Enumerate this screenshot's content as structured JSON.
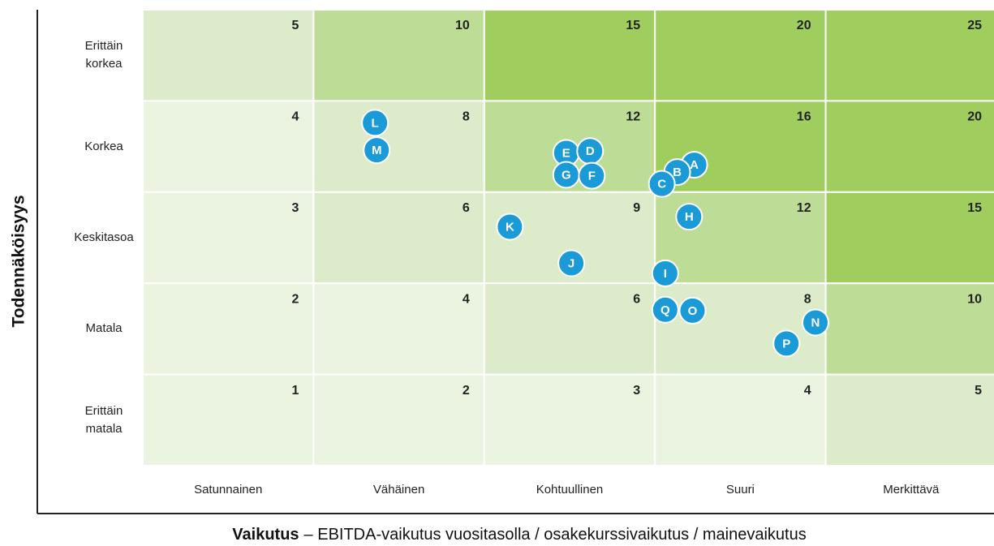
{
  "chart_data": {
    "type": "risk-matrix",
    "ylabel": "Todennäköisyys",
    "xlabel_bold": "Vaikutus",
    "xlabel": "– EBITDA-vaikutus vuositasolla / osakekurssivaikutus / mainevaikutus",
    "x_categories": [
      "Satunnainen",
      "Vähäinen",
      "Kohtuullinen",
      "Suuri",
      "Merkittävä"
    ],
    "y_categories": [
      "Erittäin korkea",
      "Korkea",
      "Keskitasoa",
      "Matala",
      "Erittäin matala"
    ],
    "cells": [
      [
        5,
        10,
        15,
        20,
        25
      ],
      [
        4,
        8,
        12,
        16,
        20
      ],
      [
        3,
        6,
        9,
        12,
        15
      ],
      [
        2,
        4,
        6,
        8,
        10
      ],
      [
        1,
        2,
        3,
        4,
        5
      ]
    ],
    "cell_colors": [
      [
        "#dcebca",
        "#bddc95",
        "#9fce5f",
        "#9fce5f",
        "#9fce5f"
      ],
      [
        "#ebf4e0",
        "#dcebca",
        "#bddc95",
        "#9fce5f",
        "#9fce5f"
      ],
      [
        "#ebf4e0",
        "#dcebca",
        "#dcebca",
        "#bddc95",
        "#9fce5f"
      ],
      [
        "#ebf4e0",
        "#ebf4e0",
        "#dcebca",
        "#dcebca",
        "#bddc95"
      ],
      [
        "#ebf4e0",
        "#ebf4e0",
        "#ebf4e0",
        "#ebf4e0",
        "#dcebca"
      ]
    ],
    "xlim": [
      0,
      5
    ],
    "ylim": [
      0,
      5
    ],
    "point_color": "#1a9ad6",
    "points": [
      {
        "label": "L",
        "x": 1.36,
        "y": 3.76
      },
      {
        "label": "M",
        "x": 1.37,
        "y": 3.46
      },
      {
        "label": "E",
        "x": 2.48,
        "y": 3.43
      },
      {
        "label": "D",
        "x": 2.62,
        "y": 3.45
      },
      {
        "label": "G",
        "x": 2.48,
        "y": 3.19
      },
      {
        "label": "F",
        "x": 2.63,
        "y": 3.18
      },
      {
        "label": "A",
        "x": 3.23,
        "y": 3.3
      },
      {
        "label": "B",
        "x": 3.13,
        "y": 3.22
      },
      {
        "label": "C",
        "x": 3.04,
        "y": 3.09
      },
      {
        "label": "H",
        "x": 3.2,
        "y": 2.73
      },
      {
        "label": "K",
        "x": 2.15,
        "y": 2.62
      },
      {
        "label": "J",
        "x": 2.51,
        "y": 2.22
      },
      {
        "label": "I",
        "x": 3.06,
        "y": 2.11
      },
      {
        "label": "Q",
        "x": 3.06,
        "y": 1.71
      },
      {
        "label": "O",
        "x": 3.22,
        "y": 1.7
      },
      {
        "label": "N",
        "x": 3.94,
        "y": 1.57
      },
      {
        "label": "P",
        "x": 3.77,
        "y": 1.34
      }
    ]
  }
}
